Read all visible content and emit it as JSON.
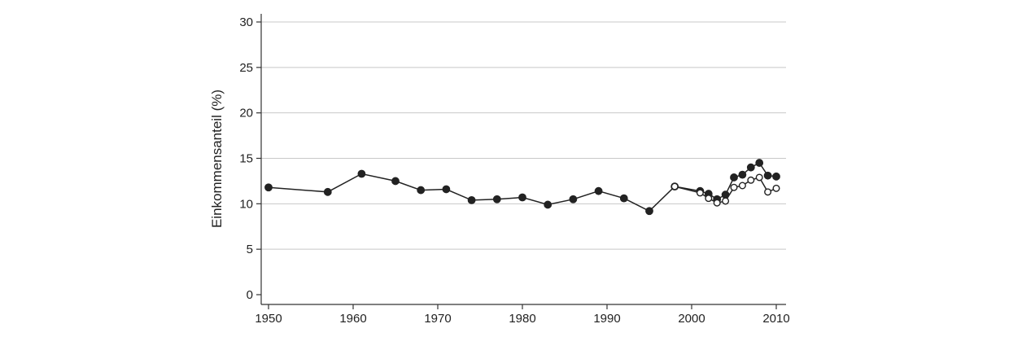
{
  "chart_data": {
    "type": "line",
    "title": "",
    "xlabel": "",
    "ylabel": "Einkommensanteil (%)",
    "xlim": [
      1949,
      2011
    ],
    "ylim": [
      0,
      30
    ],
    "x_ticks": [
      1950,
      1960,
      1970,
      1980,
      1990,
      2000,
      2010
    ],
    "y_ticks": [
      0,
      5,
      10,
      15,
      20,
      25,
      30
    ],
    "grid": {
      "horizontal": true,
      "vertical": false
    },
    "colors": {
      "line": "#222222",
      "grid": "#c8c8c8",
      "axis": "#333333"
    },
    "series": [
      {
        "marker": "filled-circle",
        "points": [
          [
            1950,
            11.8
          ],
          [
            1957,
            11.3
          ],
          [
            1961,
            13.3
          ],
          [
            1965,
            12.5
          ],
          [
            1968,
            11.5
          ],
          [
            1971,
            11.6
          ],
          [
            1974,
            10.4
          ],
          [
            1977,
            10.5
          ],
          [
            1980,
            10.7
          ],
          [
            1983,
            9.9
          ],
          [
            1986,
            10.5
          ],
          [
            1989,
            11.4
          ],
          [
            1992,
            10.6
          ],
          [
            1995,
            9.2
          ],
          [
            1998,
            11.9
          ],
          [
            2001,
            11.4
          ],
          [
            2002,
            11.1
          ],
          [
            2003,
            10.5
          ],
          [
            2004,
            11.0
          ],
          [
            2005,
            12.9
          ],
          [
            2006,
            13.2
          ],
          [
            2007,
            14.0
          ],
          [
            2008,
            14.5
          ],
          [
            2009,
            13.1
          ],
          [
            2010,
            13.0
          ]
        ]
      },
      {
        "marker": "open-circle",
        "points": [
          [
            1998,
            11.9
          ],
          [
            2001,
            11.2
          ],
          [
            2002,
            10.6
          ],
          [
            2003,
            10.1
          ],
          [
            2004,
            10.3
          ],
          [
            2005,
            11.8
          ],
          [
            2006,
            12.0
          ],
          [
            2007,
            12.6
          ],
          [
            2008,
            12.9
          ],
          [
            2009,
            11.3
          ],
          [
            2010,
            11.7
          ]
        ]
      }
    ]
  }
}
